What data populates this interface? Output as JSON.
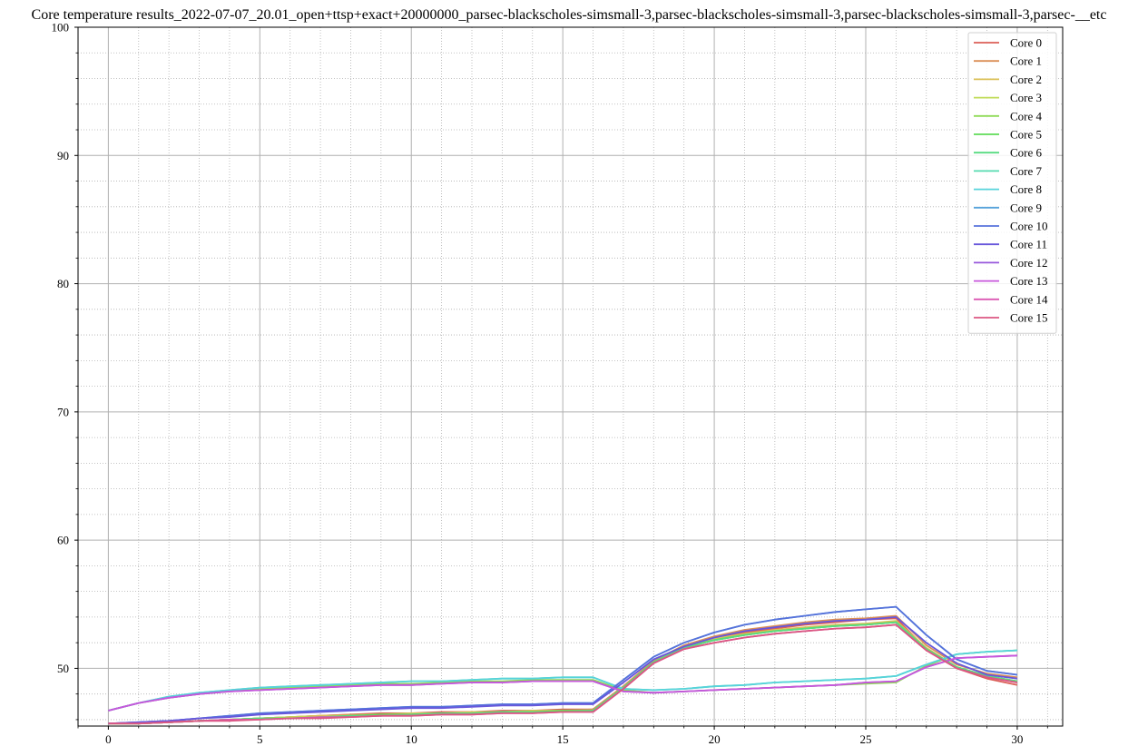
{
  "chart_data": {
    "type": "line",
    "title": "Core temperature results_2022-07-07_20.01_open+ttsp+exact+20000000_parsec-blackscholes-simsmall-3,parsec-blackscholes-simsmall-3,parsec-blackscholes-simsmall-3,parsec-__etc",
    "xlabel": "",
    "ylabel": "",
    "xlim": [
      -1,
      31.5
    ],
    "ylim": [
      45.5,
      100
    ],
    "xticks": [
      0,
      5,
      10,
      15,
      20,
      25,
      30
    ],
    "yticks": [
      50,
      60,
      70,
      80,
      90,
      100
    ],
    "grid": true,
    "legend_position": "top-right",
    "x": [
      0,
      1,
      2,
      3,
      4,
      5,
      6,
      7,
      8,
      9,
      10,
      11,
      12,
      13,
      14,
      15,
      16,
      17,
      18,
      19,
      20,
      21,
      22,
      23,
      24,
      25,
      26,
      27,
      28,
      29,
      30
    ],
    "series": [
      {
        "name": "Core 0",
        "color": "#db5f57",
        "values": [
          45.7,
          45.7,
          45.8,
          45.9,
          46.0,
          46.1,
          46.2,
          46.3,
          46.4,
          46.5,
          46.5,
          46.6,
          46.6,
          46.7,
          46.7,
          46.8,
          46.8,
          48.6,
          50.6,
          51.7,
          52.3,
          52.8,
          53.1,
          53.4,
          53.6,
          53.8,
          53.9,
          51.5,
          50.0,
          49.2,
          48.7
        ]
      },
      {
        "name": "Core 1",
        "color": "#db8f57",
        "values": [
          45.7,
          45.7,
          45.8,
          45.9,
          46.0,
          46.1,
          46.2,
          46.3,
          46.4,
          46.4,
          46.5,
          46.5,
          46.6,
          46.6,
          46.7,
          46.7,
          46.8,
          48.6,
          50.6,
          51.8,
          52.5,
          53.0,
          53.3,
          53.6,
          53.8,
          53.9,
          54.1,
          51.8,
          50.3,
          49.6,
          49.3
        ]
      },
      {
        "name": "Core 2",
        "color": "#dbc057",
        "values": [
          45.7,
          45.7,
          45.8,
          45.9,
          46.0,
          46.1,
          46.2,
          46.3,
          46.3,
          46.4,
          46.5,
          46.5,
          46.6,
          46.6,
          46.7,
          46.7,
          46.7,
          48.5,
          50.5,
          51.6,
          52.3,
          52.7,
          53.0,
          53.2,
          53.4,
          53.5,
          53.7,
          51.6,
          50.1,
          49.4,
          49.0
        ]
      },
      {
        "name": "Core 3",
        "color": "#c0db57",
        "values": [
          45.7,
          45.7,
          45.8,
          45.9,
          46.0,
          46.1,
          46.2,
          46.2,
          46.3,
          46.4,
          46.4,
          46.5,
          46.5,
          46.6,
          46.6,
          46.7,
          46.7,
          48.5,
          50.5,
          51.6,
          52.2,
          52.6,
          52.9,
          53.1,
          53.3,
          53.4,
          53.6,
          51.5,
          50.1,
          49.4,
          49.0
        ]
      },
      {
        "name": "Core 4",
        "color": "#8fdb57",
        "values": [
          46.7,
          47.3,
          47.7,
          48.0,
          48.2,
          48.4,
          48.5,
          48.6,
          48.7,
          48.8,
          48.8,
          48.9,
          49.0,
          49.0,
          49.1,
          49.1,
          49.1,
          48.3,
          48.1,
          48.2,
          48.3,
          48.4,
          48.5,
          48.6,
          48.7,
          48.8,
          48.9,
          50.2,
          51.1,
          51.3,
          51.4
        ]
      },
      {
        "name": "Core 5",
        "color": "#5fdb57",
        "values": [
          45.7,
          45.7,
          45.8,
          45.9,
          46.0,
          46.1,
          46.1,
          46.2,
          46.3,
          46.4,
          46.4,
          46.5,
          46.5,
          46.6,
          46.6,
          46.7,
          46.7,
          48.5,
          50.5,
          51.6,
          52.2,
          52.6,
          52.9,
          53.1,
          53.3,
          53.4,
          53.6,
          51.5,
          50.1,
          49.4,
          49.0
        ]
      },
      {
        "name": "Core 6",
        "color": "#57db80",
        "values": [
          45.7,
          45.7,
          45.8,
          45.9,
          46.0,
          46.1,
          46.1,
          46.2,
          46.3,
          46.3,
          46.4,
          46.5,
          46.5,
          46.6,
          46.6,
          46.6,
          46.7,
          48.5,
          50.5,
          51.6,
          52.2,
          52.6,
          52.9,
          53.1,
          53.3,
          53.4,
          53.6,
          51.5,
          50.1,
          49.4,
          49.0
        ]
      },
      {
        "name": "Core 7",
        "color": "#57dbb0",
        "values": [
          46.7,
          47.3,
          47.8,
          48.1,
          48.3,
          48.5,
          48.6,
          48.7,
          48.8,
          48.9,
          49.0,
          49.0,
          49.1,
          49.2,
          49.2,
          49.3,
          49.3,
          48.4,
          48.3,
          48.4,
          48.6,
          48.7,
          48.9,
          49.0,
          49.1,
          49.2,
          49.4,
          50.3,
          51.1,
          51.3,
          51.4
        ]
      },
      {
        "name": "Core 8",
        "color": "#57d3db",
        "values": [
          46.7,
          47.3,
          47.8,
          48.1,
          48.3,
          48.5,
          48.6,
          48.7,
          48.8,
          48.9,
          49.0,
          49.0,
          49.1,
          49.2,
          49.2,
          49.3,
          49.3,
          48.4,
          48.3,
          48.4,
          48.6,
          48.7,
          48.9,
          49.0,
          49.1,
          49.2,
          49.4,
          50.3,
          51.1,
          51.3,
          51.4
        ]
      },
      {
        "name": "Core 9",
        "color": "#57a3db",
        "values": [
          45.7,
          45.8,
          45.9,
          46.1,
          46.3,
          46.5,
          46.6,
          46.7,
          46.8,
          46.9,
          47.0,
          47.0,
          47.1,
          47.2,
          47.2,
          47.3,
          47.3,
          49.1,
          50.9,
          52.0,
          52.8,
          53.4,
          53.8,
          54.1,
          54.4,
          54.6,
          54.8,
          52.6,
          50.7,
          49.8,
          49.5
        ]
      },
      {
        "name": "Core 10",
        "color": "#5772db",
        "values": [
          45.7,
          45.8,
          45.9,
          46.1,
          46.3,
          46.5,
          46.6,
          46.7,
          46.8,
          46.9,
          47.0,
          47.0,
          47.1,
          47.2,
          47.2,
          47.3,
          47.3,
          49.1,
          50.9,
          52.0,
          52.8,
          53.4,
          53.8,
          54.1,
          54.4,
          54.6,
          54.8,
          52.6,
          50.7,
          49.8,
          49.5
        ]
      },
      {
        "name": "Core 11",
        "color": "#6757db",
        "values": [
          45.7,
          45.8,
          45.9,
          46.1,
          46.2,
          46.4,
          46.5,
          46.6,
          46.7,
          46.8,
          46.9,
          46.9,
          47.0,
          47.1,
          47.1,
          47.2,
          47.2,
          48.9,
          50.7,
          51.7,
          52.4,
          52.9,
          53.2,
          53.5,
          53.7,
          53.8,
          54.0,
          52.0,
          50.4,
          49.5,
          49.2
        ]
      },
      {
        "name": "Core 12",
        "color": "#9757db",
        "values": [
          46.7,
          47.3,
          47.7,
          48.0,
          48.2,
          48.3,
          48.4,
          48.5,
          48.6,
          48.7,
          48.7,
          48.8,
          48.9,
          48.9,
          49.0,
          49.0,
          49.0,
          48.2,
          48.1,
          48.2,
          48.3,
          48.4,
          48.5,
          48.6,
          48.7,
          48.9,
          49.0,
          50.1,
          50.8,
          50.9,
          51.0
        ]
      },
      {
        "name": "Core 13",
        "color": "#c757db",
        "values": [
          46.7,
          47.3,
          47.7,
          48.0,
          48.2,
          48.3,
          48.4,
          48.5,
          48.6,
          48.7,
          48.7,
          48.8,
          48.9,
          48.9,
          49.0,
          49.0,
          49.0,
          48.2,
          48.1,
          48.2,
          48.3,
          48.4,
          48.5,
          48.6,
          48.7,
          48.9,
          49.0,
          50.1,
          50.8,
          50.9,
          51.0
        ]
      },
      {
        "name": "Core 14",
        "color": "#db57b2",
        "values": [
          45.7,
          45.7,
          45.8,
          45.9,
          46.0,
          46.0,
          46.1,
          46.2,
          46.2,
          46.3,
          46.3,
          46.4,
          46.4,
          46.5,
          46.5,
          46.6,
          46.6,
          48.4,
          50.4,
          51.5,
          52.0,
          52.4,
          52.7,
          52.9,
          53.1,
          53.2,
          53.4,
          51.4,
          50.0,
          49.3,
          48.9
        ]
      },
      {
        "name": "Core 15",
        "color": "#db5782",
        "values": [
          45.7,
          45.7,
          45.8,
          45.9,
          45.9,
          46.0,
          46.1,
          46.1,
          46.2,
          46.3,
          46.3,
          46.4,
          46.4,
          46.5,
          46.5,
          46.6,
          46.6,
          48.4,
          50.4,
          51.5,
          52.0,
          52.4,
          52.7,
          52.9,
          53.1,
          53.2,
          53.4,
          51.4,
          50.0,
          49.3,
          48.9
        ]
      }
    ]
  }
}
